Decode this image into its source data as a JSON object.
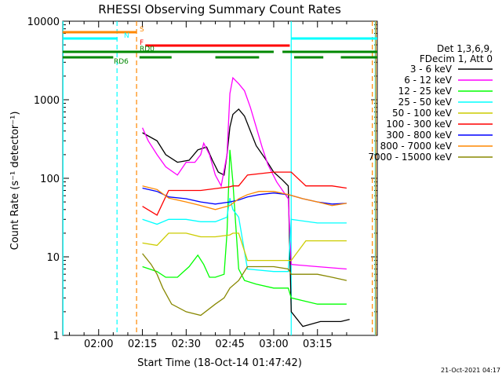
{
  "chart_data": {
    "type": "line",
    "title": "RHESSI Observing Summary Count Rates",
    "xlabel": "Start Time (18-Oct-14 01:47:42)",
    "ylabel": "Count Rate (s⁻¹ detector⁻¹)",
    "yscale": "log",
    "ylim": [
      1,
      10000
    ],
    "xlim_minutes": [
      107.7,
      215.5
    ],
    "x_ticks": [
      {
        "t": 120,
        "label": "02:00"
      },
      {
        "t": 135,
        "label": "02:15"
      },
      {
        "t": 150,
        "label": "02:30"
      },
      {
        "t": 165,
        "label": "02:45"
      },
      {
        "t": 180,
        "label": "03:00"
      },
      {
        "t": 195,
        "label": "03:15"
      }
    ],
    "y_ticks": [
      {
        "v": 1,
        "label": "1"
      },
      {
        "v": 10,
        "label": "10"
      },
      {
        "v": 100,
        "label": "100"
      },
      {
        "v": 1000,
        "label": "1000"
      },
      {
        "v": 10000,
        "label": "10000"
      }
    ],
    "legend_header": [
      "Det 1,3,6,9,",
      "FDecim 1, Att 0"
    ],
    "legend_position": "right",
    "series": [
      {
        "name": "3 - 6 keV",
        "color": "#000000",
        "points": [
          [
            135,
            380
          ],
          [
            140,
            300
          ],
          [
            143,
            200
          ],
          [
            147,
            160
          ],
          [
            151,
            170
          ],
          [
            154,
            230
          ],
          [
            157,
            250
          ],
          [
            159,
            170
          ],
          [
            161,
            120
          ],
          [
            163,
            110
          ],
          [
            164,
            200
          ],
          [
            165,
            450
          ],
          [
            166,
            650
          ],
          [
            168,
            760
          ],
          [
            170,
            620
          ],
          [
            172,
            400
          ],
          [
            174,
            260
          ],
          [
            177,
            180
          ],
          [
            180,
            120
          ],
          [
            183,
            95
          ],
          [
            185,
            80
          ],
          [
            186,
            2
          ],
          [
            190,
            1.3
          ],
          [
            196,
            1.5
          ],
          [
            203,
            1.5
          ],
          [
            206,
            1.6
          ]
        ]
      },
      {
        "name": "6 - 12 keV",
        "color": "#ff00ff",
        "points": [
          [
            135,
            440
          ],
          [
            137,
            300
          ],
          [
            140,
            200
          ],
          [
            143,
            140
          ],
          [
            147,
            110
          ],
          [
            150,
            160
          ],
          [
            153,
            160
          ],
          [
            155,
            200
          ],
          [
            156,
            280
          ],
          [
            158,
            200
          ],
          [
            160,
            110
          ],
          [
            162,
            80
          ],
          [
            164,
            200
          ],
          [
            165,
            1200
          ],
          [
            166,
            1900
          ],
          [
            168,
            1600
          ],
          [
            170,
            1300
          ],
          [
            172,
            800
          ],
          [
            174,
            450
          ],
          [
            176,
            250
          ],
          [
            178,
            150
          ],
          [
            181,
            90
          ],
          [
            185,
            55
          ],
          [
            186,
            8
          ],
          [
            195,
            7.5
          ],
          [
            205,
            7
          ]
        ]
      },
      {
        "name": "12 - 25 keV",
        "color": "#00ff00",
        "points": [
          [
            135,
            7.5
          ],
          [
            140,
            6.5
          ],
          [
            143,
            5.5
          ],
          [
            147,
            5.5
          ],
          [
            151,
            7.5
          ],
          [
            154,
            10.5
          ],
          [
            156,
            8
          ],
          [
            158,
            5.5
          ],
          [
            160,
            5.5
          ],
          [
            163,
            6
          ],
          [
            164,
            20
          ],
          [
            165,
            230
          ],
          [
            166,
            90
          ],
          [
            167,
            25
          ],
          [
            168,
            7
          ],
          [
            170,
            5
          ],
          [
            174,
            4.5
          ],
          [
            180,
            4
          ],
          [
            185,
            4
          ],
          [
            186,
            3
          ],
          [
            195,
            2.5
          ],
          [
            205,
            2.5
          ]
        ]
      },
      {
        "name": "25 - 50 keV",
        "color": "#00ffff",
        "points": [
          [
            135,
            30
          ],
          [
            140,
            26
          ],
          [
            144,
            30
          ],
          [
            150,
            30
          ],
          [
            155,
            28
          ],
          [
            160,
            28
          ],
          [
            164,
            32
          ],
          [
            165,
            56
          ],
          [
            166,
            40
          ],
          [
            168,
            32
          ],
          [
            171,
            7
          ],
          [
            180,
            6.5
          ],
          [
            185,
            6.5
          ],
          [
            186,
            30
          ],
          [
            195,
            27
          ],
          [
            205,
            27
          ]
        ]
      },
      {
        "name": "50 - 100 keV",
        "color": "#cccc00",
        "points": [
          [
            135,
            15
          ],
          [
            140,
            14
          ],
          [
            144,
            20
          ],
          [
            150,
            20
          ],
          [
            155,
            18
          ],
          [
            160,
            18
          ],
          [
            165,
            19
          ],
          [
            166,
            20
          ],
          [
            168,
            20
          ],
          [
            171,
            9
          ],
          [
            180,
            9
          ],
          [
            186,
            9
          ],
          [
            191,
            16
          ],
          [
            200,
            16
          ],
          [
            205,
            16
          ]
        ]
      },
      {
        "name": "100 - 300 keV",
        "color": "#ff0000",
        "points": [
          [
            135,
            44
          ],
          [
            140,
            34
          ],
          [
            144,
            70
          ],
          [
            150,
            70
          ],
          [
            155,
            70
          ],
          [
            160,
            74
          ],
          [
            165,
            78
          ],
          [
            166,
            80
          ],
          [
            168,
            80
          ],
          [
            171,
            110
          ],
          [
            180,
            120
          ],
          [
            186,
            120
          ],
          [
            191,
            80
          ],
          [
            200,
            80
          ],
          [
            205,
            75
          ]
        ]
      },
      {
        "name": "300 - 800 keV",
        "color": "#0000ff",
        "points": [
          [
            135,
            75
          ],
          [
            140,
            68
          ],
          [
            144,
            58
          ],
          [
            150,
            55
          ],
          [
            155,
            50
          ],
          [
            160,
            47
          ],
          [
            165,
            50
          ],
          [
            168,
            53
          ],
          [
            171,
            58
          ],
          [
            175,
            62
          ],
          [
            180,
            65
          ],
          [
            185,
            62
          ],
          [
            190,
            55
          ],
          [
            195,
            50
          ],
          [
            200,
            47
          ],
          [
            205,
            48
          ]
        ]
      },
      {
        "name": "800 - 7000 keV",
        "color": "#ff8800",
        "points": [
          [
            135,
            80
          ],
          [
            140,
            72
          ],
          [
            144,
            56
          ],
          [
            150,
            50
          ],
          [
            155,
            45
          ],
          [
            160,
            40
          ],
          [
            165,
            45
          ],
          [
            168,
            55
          ],
          [
            171,
            62
          ],
          [
            175,
            68
          ],
          [
            180,
            68
          ],
          [
            185,
            62
          ],
          [
            190,
            55
          ],
          [
            195,
            50
          ],
          [
            200,
            45
          ],
          [
            205,
            48
          ]
        ]
      },
      {
        "name": "7000 - 15000 keV",
        "color": "#888800",
        "points": [
          [
            135,
            11
          ],
          [
            138,
            8
          ],
          [
            140,
            6
          ],
          [
            142,
            4
          ],
          [
            145,
            2.5
          ],
          [
            150,
            2
          ],
          [
            155,
            1.8
          ],
          [
            160,
            2.5
          ],
          [
            163,
            3
          ],
          [
            165,
            4
          ],
          [
            168,
            5
          ],
          [
            171,
            7.5
          ],
          [
            180,
            7.5
          ],
          [
            185,
            7
          ],
          [
            186,
            6
          ],
          [
            190,
            6
          ],
          [
            195,
            6
          ],
          [
            200,
            5.5
          ],
          [
            205,
            5
          ]
        ]
      }
    ],
    "flag_bars": [
      {
        "label": "S",
        "color": "#ff8800",
        "segments": [
          [
            107.7,
            133.0
          ]
        ]
      },
      {
        "label": "N",
        "color": "#00ffff",
        "segments": [
          [
            107.7,
            126.5
          ],
          [
            186.0,
            215.5
          ]
        ]
      },
      {
        "label": "F",
        "color": "#ff0000",
        "segments": [
          [
            136.0,
            185.5
          ]
        ]
      },
      {
        "label": "RD0",
        "color": "#008800",
        "segments": [
          [
            107.7,
            180.0
          ],
          [
            183.0,
            215.5
          ]
        ]
      },
      {
        "label": "RD6",
        "color": "#008800",
        "segments": [
          [
            107.7,
            125.0
          ],
          [
            134.0,
            145.0
          ],
          [
            160.0,
            175.0
          ],
          [
            187.0,
            197.0
          ],
          [
            203.0,
            215.5
          ]
        ]
      }
    ],
    "vertical_lines": [
      {
        "t": 107.8,
        "color": "#00ffff",
        "style": "solid"
      },
      {
        "t": 126.3,
        "color": "#00ffff",
        "style": "dashed"
      },
      {
        "t": 133.0,
        "color": "#ff8800",
        "style": "dashed"
      },
      {
        "t": 186.0,
        "color": "#00ffff",
        "style": "solid"
      },
      {
        "t": 213.8,
        "color": "#ff8800",
        "style": "dashed"
      },
      {
        "t": 214.8,
        "color": "#00ffff",
        "style": "solid"
      },
      {
        "t": 215.0,
        "color": "#ff8800",
        "style": "solid"
      }
    ]
  },
  "footer": {
    "timestamp": "21-Oct-2021 04:17"
  }
}
